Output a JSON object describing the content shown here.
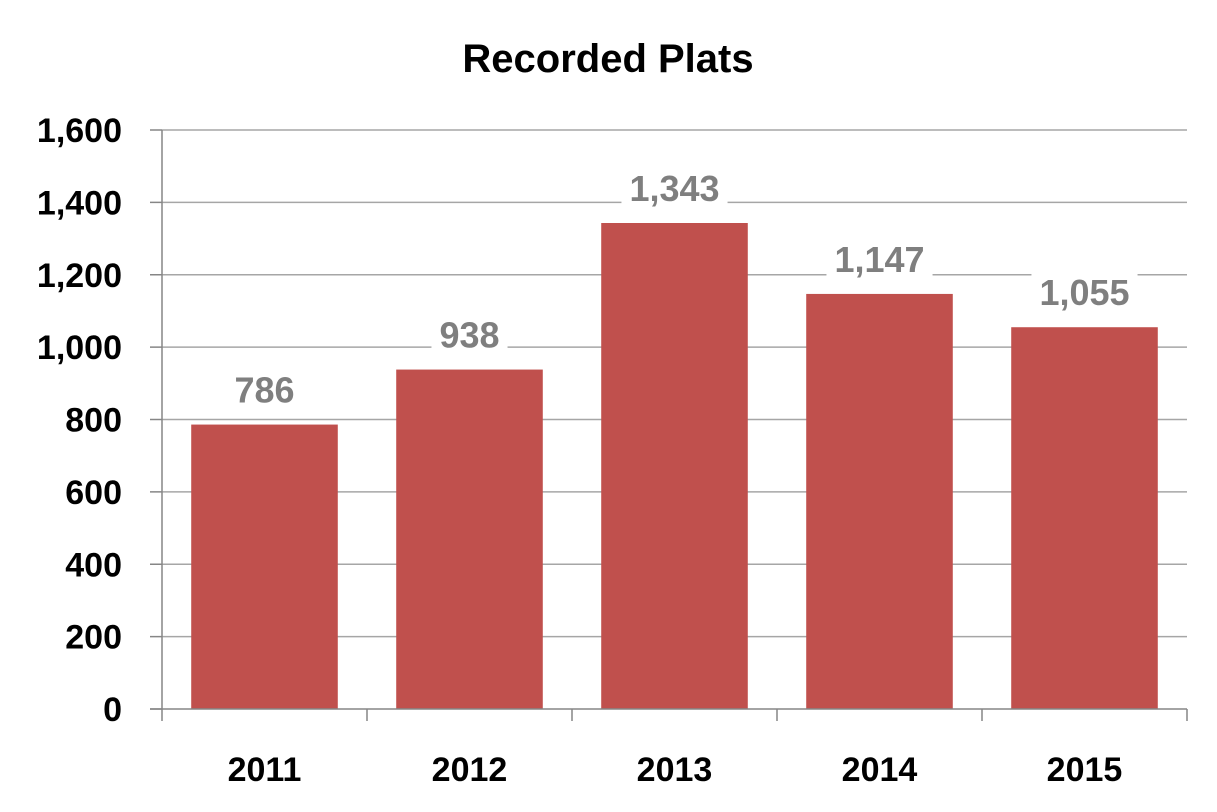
{
  "chart_data": {
    "type": "bar",
    "title": "Recorded Plats",
    "categories": [
      "2011",
      "2012",
      "2013",
      "2014",
      "2015"
    ],
    "values": [
      786,
      938,
      1343,
      1147,
      1055
    ],
    "data_labels": [
      "786",
      "938",
      "1,343",
      "1,147",
      "1,055"
    ],
    "ylim": [
      0,
      1600
    ],
    "yticks": [
      0,
      200,
      400,
      600,
      800,
      1000,
      1200,
      1400,
      1600
    ],
    "ytick_labels": [
      "0",
      "200",
      "400",
      "600",
      "800",
      "1,000",
      "1,200",
      "1,400",
      "1,600"
    ],
    "xlabel": "",
    "ylabel": "",
    "grid": true,
    "legend": "none",
    "colors": {
      "bar": "#c0504d",
      "data_label": "#7f7f7f",
      "grid": "#a6a6a6",
      "axis": "#868686"
    }
  }
}
